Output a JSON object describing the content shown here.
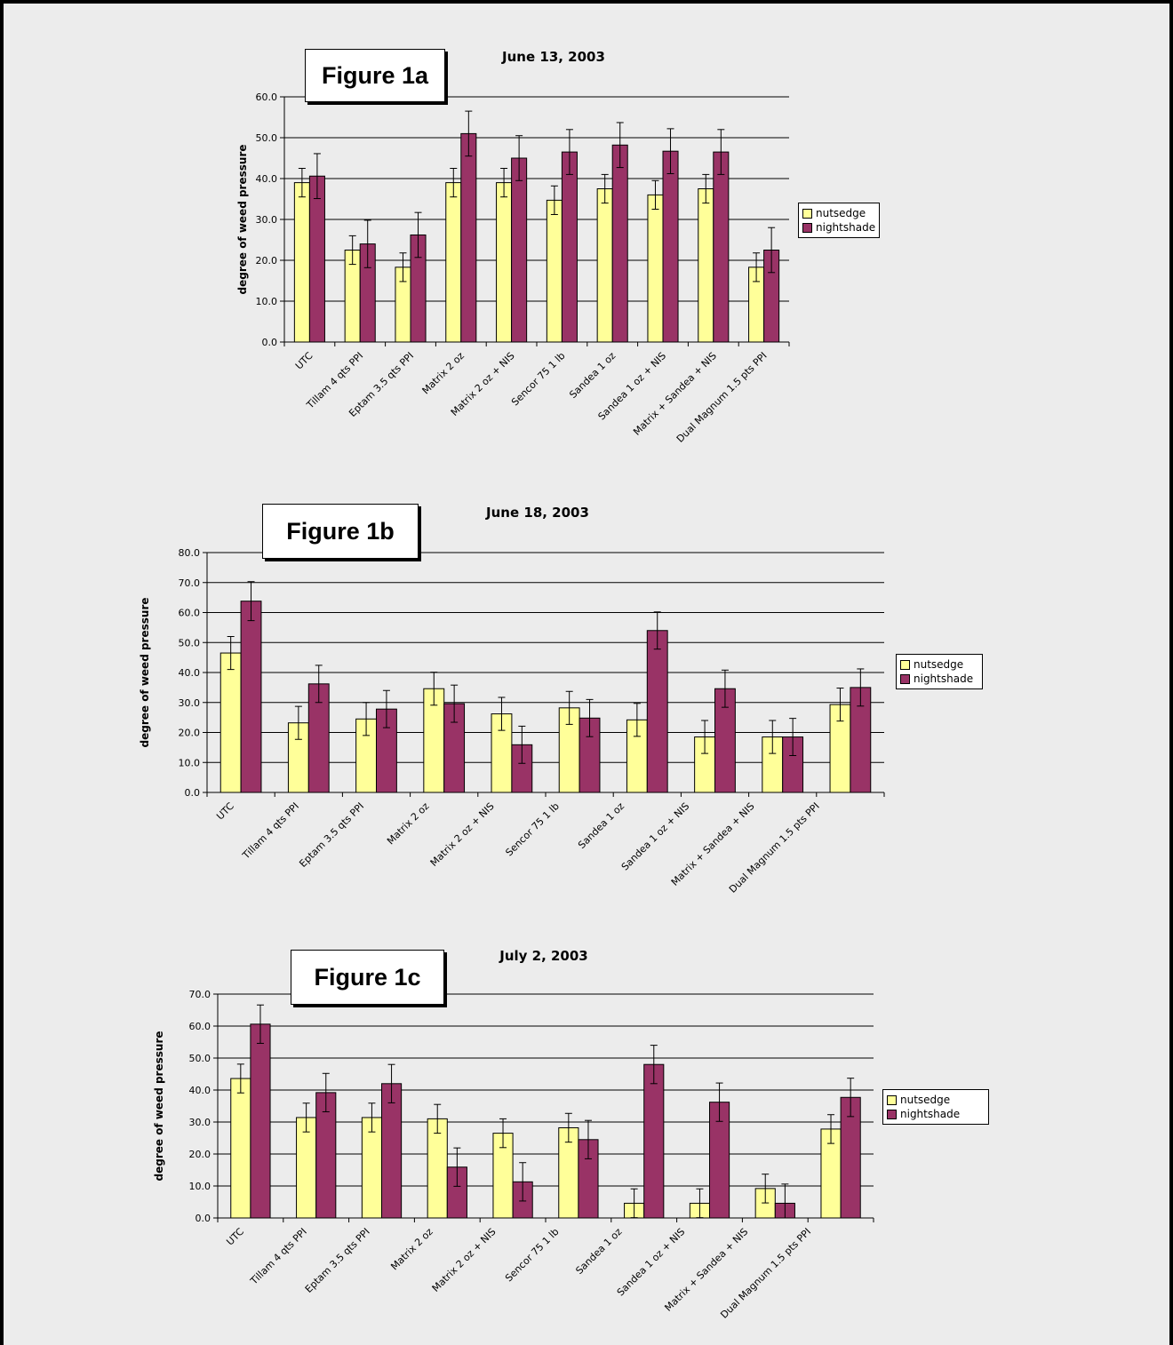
{
  "colors": {
    "nutsedge": "#ffff99",
    "nightshade": "#993366",
    "background": "#ececec"
  },
  "legend": {
    "nutsedge": "nutsedge",
    "nightshade": "nightshade"
  },
  "figures": [
    {
      "label": "Figure 1a"
    },
    {
      "label": "Figure 1b"
    },
    {
      "label": "Figure 1c"
    }
  ],
  "chart_data": [
    {
      "type": "bar",
      "title": "June 13, 2003",
      "ylabel": "degree of weed pressure",
      "ylim": [
        0,
        60
      ],
      "yticks": [
        "0.0",
        "10.0",
        "20.0",
        "30.0",
        "40.0",
        "50.0",
        "60.0"
      ],
      "grid": true,
      "legend_position": "right",
      "categories": [
        "UTC",
        "Tillam 4 qts PPI",
        "Eptam 3.5 qts PPI",
        "Matrix 2 oz",
        "Matrix 2 oz + NIS",
        "Sencor 75 1 lb",
        "Sandea 1 oz",
        "Sandea 1 oz + NIS",
        "Matrix + Sandea + NIS",
        "Dual Magnum 1.5 pts PPI"
      ],
      "series": [
        {
          "name": "nutsedge",
          "values": [
            39.0,
            22.5,
            18.3,
            39.0,
            39.0,
            34.7,
            37.5,
            36.0,
            37.5,
            18.3
          ],
          "error": [
            3.5,
            3.5,
            3.5,
            3.5,
            3.5,
            3.5,
            3.5,
            3.5,
            3.5,
            3.5
          ]
        },
        {
          "name": "nightshade",
          "values": [
            40.6,
            24.0,
            26.2,
            51.0,
            45.0,
            46.5,
            48.2,
            46.7,
            46.5,
            22.5
          ],
          "error": [
            5.5,
            5.8,
            5.5,
            5.5,
            5.5,
            5.5,
            5.5,
            5.5,
            5.5,
            5.5
          ]
        }
      ]
    },
    {
      "type": "bar",
      "title": "June 18, 2003",
      "ylabel": "degree of weed pressure",
      "ylim": [
        0,
        80
      ],
      "yticks": [
        "0.0",
        "10.0",
        "20.0",
        "30.0",
        "40.0",
        "50.0",
        "60.0",
        "70.0",
        "80.0"
      ],
      "grid": true,
      "legend_position": "right",
      "categories": [
        "UTC",
        "Tillam 4 qts PPI",
        "Eptam 3.5 qts PPI",
        "Matrix 2 oz",
        "Matrix 2 oz + NIS",
        "Sencor 75 1 lb",
        "Sandea 1 oz",
        "Sandea 1 oz + NIS",
        "Matrix + Sandea + NIS",
        "Dual Magnum 1.5 pts PPI"
      ],
      "series": [
        {
          "name": "nutsedge",
          "values": [
            46.5,
            23.2,
            24.5,
            34.6,
            26.2,
            28.2,
            24.2,
            18.5,
            18.5,
            29.3
          ],
          "error": [
            5.5,
            5.5,
            5.5,
            5.5,
            5.5,
            5.5,
            5.5,
            5.5,
            5.5,
            5.5
          ]
        },
        {
          "name": "nightshade",
          "values": [
            63.8,
            36.2,
            27.8,
            29.6,
            15.9,
            24.8,
            54.0,
            34.6,
            18.5,
            35.0
          ],
          "error": [
            6.5,
            6.2,
            6.2,
            6.2,
            6.2,
            6.2,
            6.2,
            6.2,
            6.2,
            6.2
          ]
        }
      ]
    },
    {
      "type": "bar",
      "title": "July 2, 2003",
      "ylabel": "degree of weed pressure",
      "ylim": [
        0,
        70
      ],
      "yticks": [
        "0.0",
        "10.0",
        "20.0",
        "30.0",
        "40.0",
        "50.0",
        "60.0",
        "70.0"
      ],
      "grid": true,
      "legend_position": "right",
      "categories": [
        "UTC",
        "Tillam 4 qts PPI",
        "Eptam 3.5 qts PPI",
        "Matrix 2 oz",
        "Matrix 2 oz + NIS",
        "Sencor 75 1 lb",
        "Sandea 1 oz",
        "Sandea 1 oz + NIS",
        "Matrix + Sandea + NIS",
        "Dual Magnum 1.5 pts PPI"
      ],
      "series": [
        {
          "name": "nutsedge",
          "values": [
            43.6,
            31.4,
            31.4,
            31.0,
            26.5,
            28.2,
            4.6,
            4.6,
            9.2,
            27.8
          ],
          "error": [
            4.5,
            4.5,
            4.5,
            4.5,
            4.5,
            4.5,
            4.5,
            4.5,
            4.5,
            4.5
          ]
        },
        {
          "name": "nightshade",
          "values": [
            60.6,
            39.2,
            42.0,
            15.9,
            11.3,
            24.5,
            48.0,
            36.2,
            4.6,
            37.7
          ],
          "error": [
            6.0,
            6.0,
            6.0,
            6.0,
            6.0,
            6.0,
            6.0,
            6.0,
            6.0,
            6.0
          ]
        }
      ]
    }
  ]
}
